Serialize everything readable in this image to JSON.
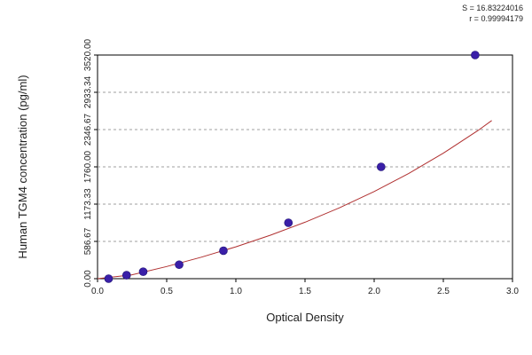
{
  "chart_data": {
    "type": "scatter",
    "xlabel": "Optical Density",
    "ylabel": "Human TGM4 concentration (pg/ml)",
    "xlim": [
      0.0,
      3.0
    ],
    "ylim": [
      0.0,
      3520.0
    ],
    "x_ticks": [
      "0.0",
      "0.5",
      "1.0",
      "1.5",
      "2.0",
      "2.5",
      "3.0"
    ],
    "y_ticks": [
      "0.00",
      "586.67",
      "1173.33",
      "1760.00",
      "2346.67",
      "2933.34",
      "3520.00"
    ],
    "stats": [
      "S = 16.83224016",
      "r = 0.99994179"
    ],
    "grid": "horizontal-dashed",
    "series": [
      {
        "points": [
          {
            "x": 0.08,
            "y": 0
          },
          {
            "x": 0.21,
            "y": 55
          },
          {
            "x": 0.33,
            "y": 110
          },
          {
            "x": 0.59,
            "y": 220
          },
          {
            "x": 0.91,
            "y": 440
          },
          {
            "x": 1.38,
            "y": 880
          },
          {
            "x": 2.05,
            "y": 1760
          },
          {
            "x": 2.73,
            "y": 3520
          }
        ]
      }
    ],
    "fit_curve": {
      "type": "exponential",
      "points": [
        {
          "x": 0.0,
          "y": -55
        },
        {
          "x": 0.25,
          "y": 62
        },
        {
          "x": 0.5,
          "y": 192
        },
        {
          "x": 0.75,
          "y": 338
        },
        {
          "x": 1.0,
          "y": 501
        },
        {
          "x": 1.25,
          "y": 684
        },
        {
          "x": 1.5,
          "y": 888
        },
        {
          "x": 1.75,
          "y": 1116
        },
        {
          "x": 2.0,
          "y": 1371
        },
        {
          "x": 2.25,
          "y": 1656
        },
        {
          "x": 2.5,
          "y": 1975
        },
        {
          "x": 2.75,
          "y": 2332
        },
        {
          "x": 2.85,
          "y": 2489
        }
      ]
    },
    "colors": {
      "point": "#3a1fa8",
      "curve": "#b03030",
      "grid": "#808080",
      "axis": "#000000"
    }
  }
}
